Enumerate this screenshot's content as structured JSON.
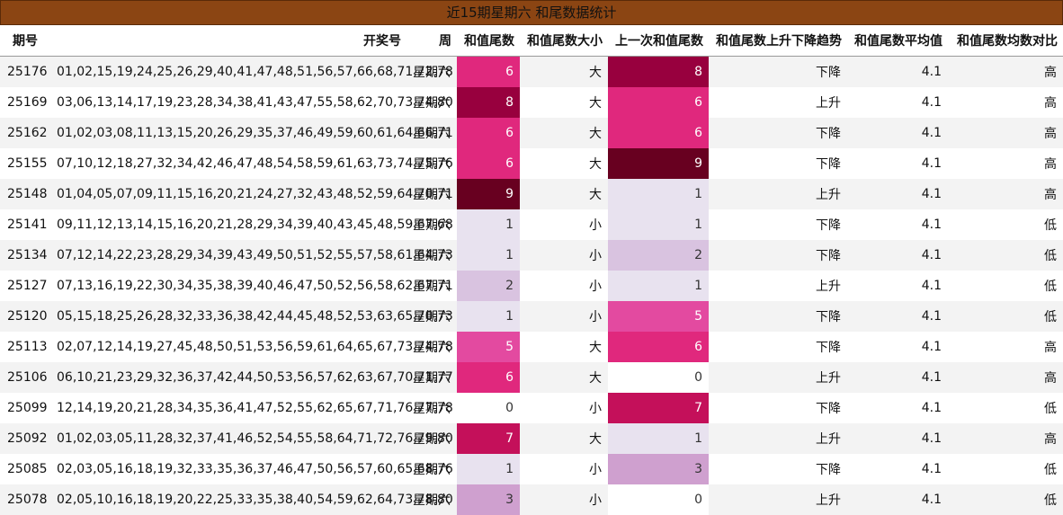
{
  "title": "近15期星期六 和尾数据统计",
  "headers": [
    "期号",
    "开奖号",
    "周",
    "和值尾数",
    "和值尾数大小",
    "上一次和值尾数",
    "和值尾数上升下降趋势",
    "和值尾数平均值",
    "和值尾数均数对比"
  ],
  "colors": {
    "title_bg": "#8b4513",
    "heat": {
      "0": "#ffffff",
      "1": "#e8e2ef",
      "2": "#d9c3e0",
      "3": "#cfa0cf",
      "5": "#e34aa0",
      "6": "#e0287d",
      "7": "#c4105a",
      "8": "#98003e",
      "9": "#680020"
    }
  },
  "rows": [
    {
      "id": "25176",
      "numbers": "01,02,15,19,24,25,26,29,40,41,47,48,51,56,57,66,68,71,72,78",
      "week": "星期六",
      "tail": "6",
      "size": "大",
      "prev": "8",
      "trend": "下降",
      "avg": "4.1",
      "cmp": "高"
    },
    {
      "id": "25169",
      "numbers": "03,06,13,14,17,19,23,28,34,38,41,43,47,55,58,62,70,73,74,80",
      "week": "星期六",
      "tail": "8",
      "size": "大",
      "prev": "6",
      "trend": "上升",
      "avg": "4.1",
      "cmp": "高"
    },
    {
      "id": "25162",
      "numbers": "01,02,03,08,11,13,15,20,26,29,35,37,46,49,59,60,61,64,66,71",
      "week": "星期六",
      "tail": "6",
      "size": "大",
      "prev": "6",
      "trend": "下降",
      "avg": "4.1",
      "cmp": "高"
    },
    {
      "id": "25155",
      "numbers": "07,10,12,18,27,32,34,42,46,47,48,54,58,59,61,63,73,74,75,76",
      "week": "星期六",
      "tail": "6",
      "size": "大",
      "prev": "9",
      "trend": "下降",
      "avg": "4.1",
      "cmp": "高"
    },
    {
      "id": "25148",
      "numbers": "01,04,05,07,09,11,15,16,20,21,24,27,32,43,48,52,59,64,70,71",
      "week": "星期六",
      "tail": "9",
      "size": "大",
      "prev": "1",
      "trend": "上升",
      "avg": "4.1",
      "cmp": "高"
    },
    {
      "id": "25141",
      "numbers": "09,11,12,13,14,15,16,20,21,28,29,34,39,40,43,45,48,59,67,68",
      "week": "星期六",
      "tail": "1",
      "size": "小",
      "prev": "1",
      "trend": "下降",
      "avg": "4.1",
      "cmp": "低"
    },
    {
      "id": "25134",
      "numbers": "07,12,14,22,23,28,29,34,39,43,49,50,51,52,55,57,58,61,64,73",
      "week": "星期六",
      "tail": "1",
      "size": "小",
      "prev": "2",
      "trend": "下降",
      "avg": "4.1",
      "cmp": "低"
    },
    {
      "id": "25127",
      "numbers": "07,13,16,19,22,30,34,35,38,39,40,46,47,50,52,56,58,62,67,71",
      "week": "星期六",
      "tail": "2",
      "size": "小",
      "prev": "1",
      "trend": "上升",
      "avg": "4.1",
      "cmp": "低"
    },
    {
      "id": "25120",
      "numbers": "05,15,18,25,26,28,32,33,36,38,42,44,45,48,52,53,63,65,70,73",
      "week": "星期六",
      "tail": "1",
      "size": "小",
      "prev": "5",
      "trend": "下降",
      "avg": "4.1",
      "cmp": "低"
    },
    {
      "id": "25113",
      "numbers": "02,07,12,14,19,27,45,48,50,51,53,56,59,61,64,65,67,73,74,78",
      "week": "星期六",
      "tail": "5",
      "size": "大",
      "prev": "6",
      "trend": "下降",
      "avg": "4.1",
      "cmp": "高"
    },
    {
      "id": "25106",
      "numbers": "06,10,21,23,29,32,36,37,42,44,50,53,56,57,62,63,67,70,71,77",
      "week": "星期六",
      "tail": "6",
      "size": "大",
      "prev": "0",
      "trend": "上升",
      "avg": "4.1",
      "cmp": "高"
    },
    {
      "id": "25099",
      "numbers": "12,14,19,20,21,28,34,35,36,41,47,52,55,62,65,67,71,76,77,78",
      "week": "星期六",
      "tail": "0",
      "size": "小",
      "prev": "7",
      "trend": "下降",
      "avg": "4.1",
      "cmp": "低"
    },
    {
      "id": "25092",
      "numbers": "01,02,03,05,11,28,32,37,41,46,52,54,55,58,64,71,72,76,79,80",
      "week": "星期六",
      "tail": "7",
      "size": "大",
      "prev": "1",
      "trend": "上升",
      "avg": "4.1",
      "cmp": "高"
    },
    {
      "id": "25085",
      "numbers": "02,03,05,16,18,19,32,33,35,36,37,46,47,50,56,57,60,65,68,76",
      "week": "星期六",
      "tail": "1",
      "size": "小",
      "prev": "3",
      "trend": "下降",
      "avg": "4.1",
      "cmp": "低"
    },
    {
      "id": "25078",
      "numbers": "02,05,10,16,18,19,20,22,25,33,35,38,40,54,59,62,64,73,78,80",
      "week": "星期六",
      "tail": "3",
      "size": "小",
      "prev": "0",
      "trend": "上升",
      "avg": "4.1",
      "cmp": "低"
    }
  ]
}
